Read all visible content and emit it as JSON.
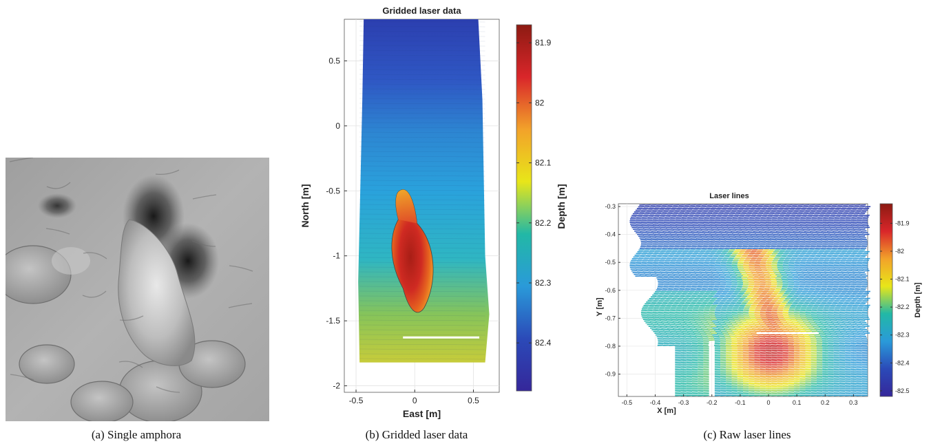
{
  "captions": {
    "a": "(a) Single amphora",
    "b": "(b) Gridded laser data",
    "c": "(c) Raw laser lines"
  },
  "figure_a": {
    "photo": "seabed-amphora-photo"
  },
  "chart_data": [
    {
      "type": "heatmap",
      "title": "Gridded laser data",
      "xlabel": "East [m]",
      "ylabel": "North [m]",
      "xlim": [
        -0.6,
        0.72
      ],
      "ylim": [
        -2.05,
        0.82
      ],
      "xticks": [
        -0.5,
        0,
        0.5
      ],
      "xtick_labels": [
        "-0.5",
        "0",
        "0.5"
      ],
      "yticks": [
        0.5,
        0,
        -0.5,
        -1,
        -1.5,
        -2
      ],
      "ytick_labels": [
        "0.5",
        "0",
        "-0.5",
        "-1",
        "-1.5",
        "-2"
      ],
      "colorbar": {
        "label": "Depth [m]",
        "range": [
          81.87,
          82.48
        ],
        "ticks": [
          81.9,
          82,
          82.1,
          82.2,
          82.3,
          82.4
        ],
        "tick_labels": [
          "81.9",
          "82",
          "82.1",
          "82.2",
          "82.3",
          "82.4"
        ],
        "colors": [
          "#8c1a12",
          "#d9262a",
          "#f2a22a",
          "#e8e619",
          "#22b8a6",
          "#2a9ad9",
          "#2b4ab8",
          "#35279a"
        ]
      },
      "grid": true
    },
    {
      "type": "scatter",
      "title": "Laser lines",
      "xlabel": "X [m]",
      "ylabel": "Y [m]",
      "xlim": [
        -0.53,
        0.35
      ],
      "ylim": [
        -0.98,
        -0.29
      ],
      "xticks": [
        -0.5,
        -0.4,
        -0.3,
        -0.2,
        -0.1,
        0,
        0.1,
        0.2,
        0.3
      ],
      "xtick_labels": [
        "-0.5",
        "-0.4",
        "-0.3",
        "-0.2",
        "-0.1",
        "0",
        "0.1",
        "0.2",
        "0.3"
      ],
      "yticks": [
        -0.3,
        -0.4,
        -0.5,
        -0.6,
        -0.7,
        -0.8,
        -0.9
      ],
      "ytick_labels": [
        "-0.3",
        "-0.4",
        "-0.5",
        "-0.6",
        "-0.7",
        "-0.8",
        "-0.9"
      ],
      "colorbar": {
        "label": "Depth [m]",
        "range": [
          -82.52,
          -81.83
        ],
        "ticks": [
          -81.9,
          -82,
          -82.1,
          -82.2,
          -82.3,
          -82.4,
          -82.5
        ],
        "tick_labels": [
          "-81.9",
          "-82",
          "-82.1",
          "-82.2",
          "-82.3",
          "-82.4",
          "-82.5"
        ],
        "colors": [
          "#8c1a12",
          "#d9262a",
          "#f2a22a",
          "#e8e619",
          "#22b8a6",
          "#2a9ad9",
          "#2b4ab8",
          "#35279a"
        ]
      },
      "grid": true
    }
  ]
}
